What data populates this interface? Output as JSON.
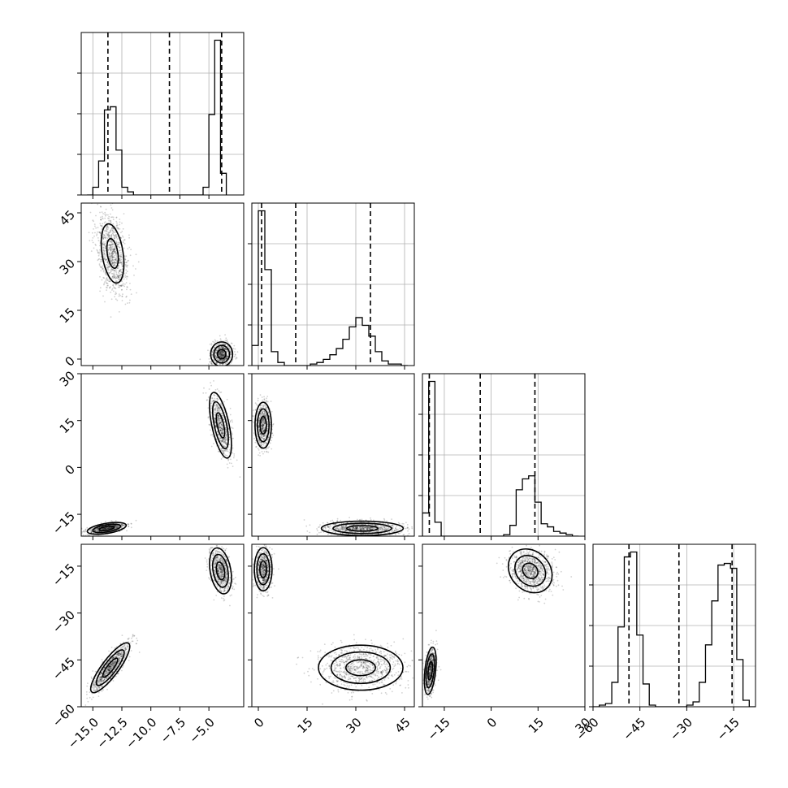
{
  "chart_data": {
    "type": "corner",
    "parameters": [
      {
        "range": [
          -16,
          -2
        ],
        "ticks": [
          -15.0,
          -12.5,
          -10.0,
          -7.5,
          -5.0
        ],
        "tick_labels": [
          "−15.0",
          "−12.5",
          "−10.0",
          "−7.5",
          "−5.0"
        ]
      },
      {
        "range": [
          -2,
          48
        ],
        "ticks": [
          0,
          15,
          30,
          45
        ],
        "tick_labels": [
          "0",
          "15",
          "30",
          "45"
        ]
      },
      {
        "range": [
          -22,
          30
        ],
        "ticks": [
          -15,
          0,
          15,
          30
        ],
        "tick_labels": [
          "−15",
          "0",
          "15",
          "30"
        ]
      },
      {
        "range": [
          -60,
          -8
        ],
        "ticks": [
          -60,
          -45,
          -30,
          -15
        ],
        "tick_labels": [
          "−60",
          "−45",
          "−30",
          "−15"
        ]
      }
    ],
    "grid": true,
    "marginals": [
      {
        "bins": [
          [
            -15.5,
            0.0
          ],
          [
            -15.0,
            0.05
          ],
          [
            -14.5,
            0.22
          ],
          [
            -14.0,
            0.55
          ],
          [
            -13.5,
            0.57
          ],
          [
            -13.0,
            0.29
          ],
          [
            -12.5,
            0.05
          ],
          [
            -12.0,
            0.02
          ],
          [
            -11.5,
            0.0
          ],
          [
            -11.0,
            0.0
          ],
          [
            -10.0,
            0.0
          ],
          [
            -9.0,
            0.0
          ],
          [
            -8.0,
            0.0
          ],
          [
            -7.0,
            0.0
          ],
          [
            -6.0,
            0.0
          ],
          [
            -5.5,
            0.05
          ],
          [
            -5.0,
            0.52
          ],
          [
            -4.5,
            1.0
          ],
          [
            -4.0,
            0.14
          ]
        ],
        "bin_width": 0.5,
        "quantiles": [
          -13.7,
          -8.4,
          -3.9
        ]
      },
      {
        "bins": [
          [
            -2,
            0.13
          ],
          [
            0,
            1.0
          ],
          [
            2,
            0.62
          ],
          [
            4,
            0.09
          ],
          [
            6,
            0.02
          ],
          [
            8,
            0.0
          ],
          [
            10,
            0.0
          ],
          [
            12,
            0.0
          ],
          [
            14,
            0.0
          ],
          [
            16,
            0.01
          ],
          [
            18,
            0.02
          ],
          [
            20,
            0.04
          ],
          [
            22,
            0.07
          ],
          [
            24,
            0.11
          ],
          [
            26,
            0.17
          ],
          [
            28,
            0.25
          ],
          [
            30,
            0.31
          ],
          [
            32,
            0.26
          ],
          [
            34,
            0.19
          ],
          [
            36,
            0.09
          ],
          [
            38,
            0.03
          ],
          [
            40,
            0.01
          ],
          [
            42,
            0.01
          ],
          [
            44,
            0.0
          ]
        ],
        "bin_width": 2,
        "quantiles": [
          1.0,
          11.5,
          34.5
        ]
      },
      {
        "bins": [
          [
            -22,
            0.15
          ],
          [
            -20,
            1.0
          ],
          [
            -18,
            0.09
          ],
          [
            -16,
            0.0
          ],
          [
            -14,
            0.0
          ],
          [
            -12,
            0.0
          ],
          [
            -10,
            0.0
          ],
          [
            -8,
            0.0
          ],
          [
            -6,
            0.0
          ],
          [
            -4,
            0.0
          ],
          [
            -2,
            0.0
          ],
          [
            0,
            0.0
          ],
          [
            2,
            0.0
          ],
          [
            4,
            0.01
          ],
          [
            6,
            0.07
          ],
          [
            8,
            0.3
          ],
          [
            10,
            0.37
          ],
          [
            12,
            0.39
          ],
          [
            14,
            0.22
          ],
          [
            16,
            0.08
          ],
          [
            18,
            0.06
          ],
          [
            20,
            0.03
          ],
          [
            22,
            0.02
          ],
          [
            24,
            0.01
          ],
          [
            26,
            0.0
          ]
        ],
        "bin_width": 2,
        "quantiles": [
          -19.8,
          -3.5,
          14.0
        ]
      },
      {
        "bins": [
          [
            -60,
            0.0
          ],
          [
            -58,
            0.01
          ],
          [
            -56,
            0.02
          ],
          [
            -54,
            0.15
          ],
          [
            -52,
            0.49
          ],
          [
            -50,
            0.92
          ],
          [
            -48,
            0.95
          ],
          [
            -46,
            0.44
          ],
          [
            -44,
            0.14
          ],
          [
            -42,
            0.01
          ],
          [
            -40,
            0.0
          ],
          [
            -38,
            0.0
          ],
          [
            -36,
            0.0
          ],
          [
            -34,
            0.0
          ],
          [
            -32,
            0.0
          ],
          [
            -30,
            0.01
          ],
          [
            -28,
            0.03
          ],
          [
            -26,
            0.15
          ],
          [
            -24,
            0.38
          ],
          [
            -22,
            0.65
          ],
          [
            -20,
            0.87
          ],
          [
            -18,
            0.88
          ],
          [
            -16,
            0.85
          ],
          [
            -14,
            0.29
          ],
          [
            -12,
            0.04
          ],
          [
            -10,
            0.0
          ]
        ],
        "bin_width": 2,
        "quantiles": [
          -48.5,
          -32.5,
          -15.5
        ]
      }
    ],
    "pairs": [
      {
        "row": 1,
        "col": 0,
        "clusters": [
          {
            "cx": -13.3,
            "cy": 32.5,
            "sx": 0.7,
            "sy": 6.5,
            "rho": -0.35,
            "n": 900,
            "rings": [
              [
                0.7,
                0.1
              ],
              [
                1.4,
                0.02
              ]
            ]
          },
          {
            "cx": -3.9,
            "cy": 1.5,
            "sx": 0.45,
            "sy": 1.8,
            "rho": 0.0,
            "n": 700,
            "rings": [
              [
                0.8,
                0.35
              ],
              [
                1.5,
                0.12
              ],
              [
                2.1,
                0.05
              ]
            ]
          }
        ]
      },
      {
        "row": 2,
        "col": 0,
        "clusters": [
          {
            "cx": -13.8,
            "cy": -19.5,
            "sx": 0.8,
            "sy": 0.9,
            "rho": 0.5,
            "n": 700,
            "rings": [
              [
                0.8,
                0.35
              ],
              [
                1.5,
                0.12
              ],
              [
                2.1,
                0.05
              ]
            ]
          },
          {
            "cx": -4.0,
            "cy": 13.5,
            "sx": 0.45,
            "sy": 5.0,
            "rho": -0.6,
            "n": 700,
            "rings": [
              [
                0.8,
                0.25
              ],
              [
                1.5,
                0.1
              ],
              [
                2.1,
                0.04
              ]
            ]
          }
        ]
      },
      {
        "row": 2,
        "col": 1,
        "clusters": [
          {
            "cx": 1.5,
            "cy": 13.5,
            "sx": 1.2,
            "sy": 3.5,
            "rho": 0.0,
            "n": 700,
            "rings": [
              [
                0.8,
                0.25
              ],
              [
                1.5,
                0.1
              ],
              [
                2.1,
                0.04
              ]
            ]
          },
          {
            "cx": 32.0,
            "cy": -19.5,
            "sx": 6.0,
            "sy": 1.1,
            "rho": 0.0,
            "n": 900,
            "rings": [
              [
                0.8,
                0.3
              ],
              [
                1.5,
                0.1
              ],
              [
                2.1,
                0.04
              ]
            ]
          }
        ]
      },
      {
        "row": 3,
        "col": 0,
        "clusters": [
          {
            "cx": -13.5,
            "cy": -47.5,
            "sx": 0.8,
            "sy": 3.8,
            "rho": 0.85,
            "n": 900,
            "rings": [
              [
                0.8,
                0.35
              ],
              [
                1.5,
                0.12
              ],
              [
                2.1,
                0.05
              ]
            ]
          },
          {
            "cx": -4.0,
            "cy": -16.5,
            "sx": 0.45,
            "sy": 3.5,
            "rho": -0.3,
            "n": 700,
            "rings": [
              [
                0.8,
                0.35
              ],
              [
                1.5,
                0.12
              ],
              [
                2.1,
                0.05
              ]
            ]
          }
        ]
      },
      {
        "row": 3,
        "col": 1,
        "clusters": [
          {
            "cx": 1.5,
            "cy": -16.0,
            "sx": 1.3,
            "sy": 3.3,
            "rho": 0.0,
            "n": 700,
            "rings": [
              [
                0.8,
                0.35
              ],
              [
                1.5,
                0.12
              ],
              [
                2.1,
                0.05
              ]
            ]
          },
          {
            "cx": 31.5,
            "cy": -47.5,
            "sx": 6.5,
            "sy": 3.6,
            "rho": 0.0,
            "n": 900,
            "rings": [
              [
                0.7,
                0.1
              ],
              [
                1.4,
                0.03
              ],
              [
                2.0,
                0.01
              ]
            ]
          }
        ]
      },
      {
        "row": 3,
        "col": 2,
        "clusters": [
          {
            "cx": -19.5,
            "cy": -48.5,
            "sx": 0.9,
            "sy": 3.6,
            "rho": 0.4,
            "n": 700,
            "rings": [
              [
                0.8,
                0.35
              ],
              [
                1.5,
                0.12
              ],
              [
                2.1,
                0.05
              ]
            ]
          },
          {
            "cx": 12.5,
            "cy": -16.5,
            "sx": 3.5,
            "sy": 3.5,
            "rho": -0.2,
            "n": 900,
            "rings": [
              [
                0.7,
                0.1
              ],
              [
                1.4,
                0.03
              ],
              [
                2.0,
                0.01
              ]
            ]
          }
        ]
      }
    ]
  }
}
